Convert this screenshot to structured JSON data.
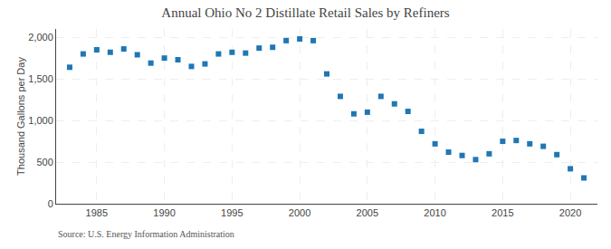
{
  "chart_data": {
    "type": "scatter",
    "title": "Annual Ohio No 2 Distillate Retail Sales by Refiners",
    "ylabel": "Thousand Gallons per Day",
    "annotations": [
      "Source: U.S. Energy Information Administration"
    ],
    "marker": "square",
    "grid": true,
    "x": [
      1983,
      1984,
      1985,
      1986,
      1987,
      1988,
      1989,
      1990,
      1991,
      1992,
      1993,
      1994,
      1995,
      1996,
      1997,
      1998,
      1999,
      2000,
      2001,
      2002,
      2003,
      2004,
      2005,
      2006,
      2007,
      2008,
      2009,
      2010,
      2011,
      2012,
      2013,
      2014,
      2015,
      2016,
      2017,
      2018,
      2019,
      2020,
      2021
    ],
    "values": [
      1640,
      1800,
      1850,
      1820,
      1860,
      1790,
      1690,
      1750,
      1730,
      1650,
      1680,
      1800,
      1820,
      1810,
      1870,
      1880,
      1960,
      1980,
      1960,
      1560,
      1290,
      1080,
      1100,
      1290,
      1200,
      1110,
      870,
      720,
      620,
      580,
      530,
      600,
      750,
      760,
      720,
      690,
      590,
      420,
      310
    ],
    "xlim": [
      1982,
      2022
    ],
    "xticks": [
      1985,
      1990,
      1995,
      2000,
      2005,
      2010,
      2015,
      2020
    ],
    "ylim": [
      0,
      2100
    ],
    "yticks": [
      0,
      500,
      {
        "value": 1000,
        "label": "1,000"
      },
      {
        "value": 1500,
        "label": "1,500"
      },
      {
        "value": 2000,
        "label": "2,000"
      }
    ]
  }
}
